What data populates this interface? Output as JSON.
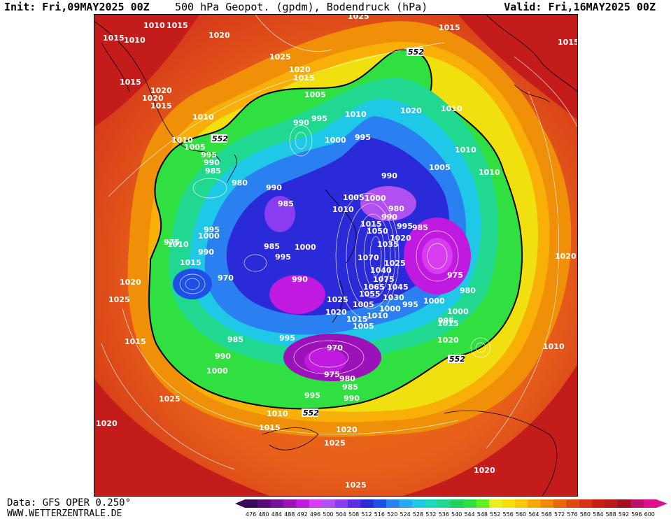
{
  "header": {
    "init": "Init: Fri,09MAY2025 00Z",
    "title": "500 hPa Geopot. (gpdm), Bodendruck (hPa)",
    "valid": "Valid: Fri,16MAY2025 00Z"
  },
  "footer": {
    "data_source": "Data: GFS OPER 0.250°",
    "website": "WWW.WETTERZENTRALE.DE"
  },
  "colors": {
    "background_warm": "#d8401c",
    "contour_line": "#000000",
    "isobar_label": "#ffffff"
  },
  "geopotential_labels": [
    "552",
    "552",
    "552",
    "552"
  ],
  "isobar_labels": [
    "1010",
    "1015",
    "1015",
    "1010",
    "1020",
    "1025",
    "1025",
    "1015",
    "1015",
    "1020",
    "1020",
    "1015",
    "1005",
    "1015",
    "1020",
    "1010",
    "1010",
    "1010",
    "1005",
    "995",
    "990",
    "990",
    "985",
    "995",
    "1000",
    "995",
    "1020",
    "1010",
    "1010",
    "1005",
    "1010",
    "990",
    "980",
    "990",
    "985",
    "1000",
    "1010",
    "1005",
    "1000",
    "980",
    "990",
    "995",
    "985",
    "1015",
    "1050",
    "1035",
    "1020",
    "985",
    "995",
    "1000",
    "1070",
    "1025",
    "1040",
    "975",
    "1075",
    "1065",
    "1045",
    "980",
    "1055",
    "990",
    "1030",
    "995",
    "1025",
    "1020",
    "1000",
    "1005",
    "1000",
    "1010",
    "1015",
    "1005",
    "1015",
    "1020",
    "985",
    "995",
    "990",
    "1000",
    "970",
    "975",
    "980",
    "985",
    "990",
    "995",
    "1010",
    "1015",
    "1020",
    "1025",
    "1025",
    "1020",
    "1015",
    "1025",
    "1020",
    "1025",
    "1010",
    "1015",
    "990",
    "970",
    "995",
    "975",
    "1000",
    "995",
    "1010",
    "1015",
    "1020",
    "1020",
    "1025",
    "1025"
  ],
  "color_scale": {
    "unit": "gpdm",
    "labels": [
      "476",
      "480",
      "484",
      "488",
      "492",
      "496",
      "500",
      "504",
      "508",
      "512",
      "516",
      "520",
      "524",
      "528",
      "532",
      "536",
      "540",
      "544",
      "548",
      "552",
      "556",
      "560",
      "564",
      "568",
      "572",
      "576",
      "580",
      "584",
      "588",
      "592",
      "596",
      "600"
    ],
    "colors": [
      "#3a0a58",
      "#5a0a78",
      "#7a0e9a",
      "#9a12b8",
      "#c01ae0",
      "#d83cf0",
      "#b050f0",
      "#8a3cf0",
      "#5a2ee8",
      "#2a2ad8",
      "#1e50e8",
      "#2a80f0",
      "#28a8f0",
      "#20c8e8",
      "#20d8c0",
      "#20d890",
      "#20d060",
      "#30e040",
      "#60f020",
      "#e8f020",
      "#f8e010",
      "#f8c808",
      "#f8a808",
      "#f08808",
      "#e86808",
      "#e04810",
      "#d83018",
      "#c82018",
      "#b81818",
      "#a01020",
      "#c0106a",
      "#e0108c"
    ]
  }
}
